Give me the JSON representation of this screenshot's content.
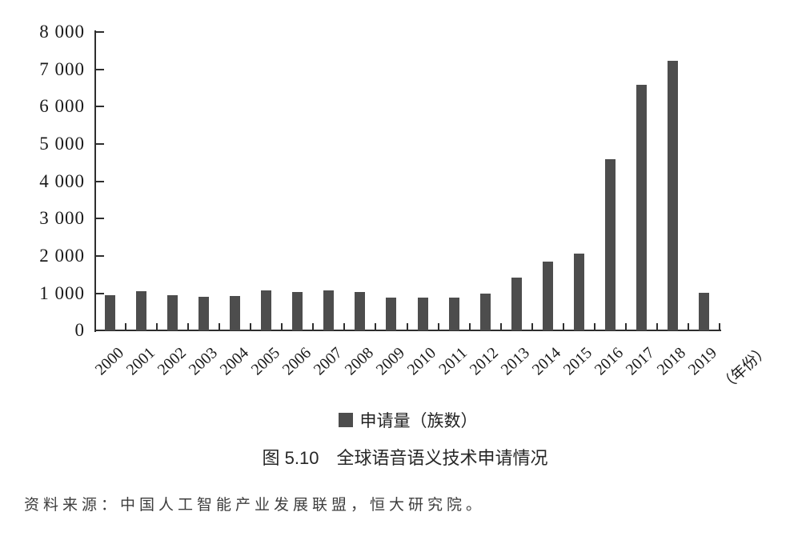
{
  "chart_data": {
    "type": "bar",
    "title": "图 5.10　全球语音语义技术申请情况",
    "legend": {
      "label": "申请量（族数）",
      "position": "bottom"
    },
    "x_unit_label": "（年份）",
    "categories": [
      "2000",
      "2001",
      "2002",
      "2003",
      "2004",
      "2005",
      "2006",
      "2007",
      "2008",
      "2009",
      "2010",
      "2011",
      "2012",
      "2013",
      "2014",
      "2015",
      "2016",
      "2017",
      "2018",
      "2019"
    ],
    "values": [
      940,
      1050,
      960,
      910,
      920,
      1070,
      1030,
      1080,
      1040,
      890,
      890,
      890,
      990,
      1430,
      1860,
      2070,
      4590,
      6590,
      7230,
      1010
    ],
    "ylim": [
      0,
      8000
    ],
    "y_tick_step": 1000,
    "y_tick_labels": [
      "0",
      "1 000",
      "2 000",
      "3 000",
      "4 000",
      "5 000",
      "6 000",
      "7 000",
      "8 000"
    ],
    "grid": false,
    "bar_color": "#4d4d4d",
    "axis_color": "#2e2e2e"
  },
  "source_note": "资料来源：中国人工智能产业发展联盟，恒大研究院。"
}
